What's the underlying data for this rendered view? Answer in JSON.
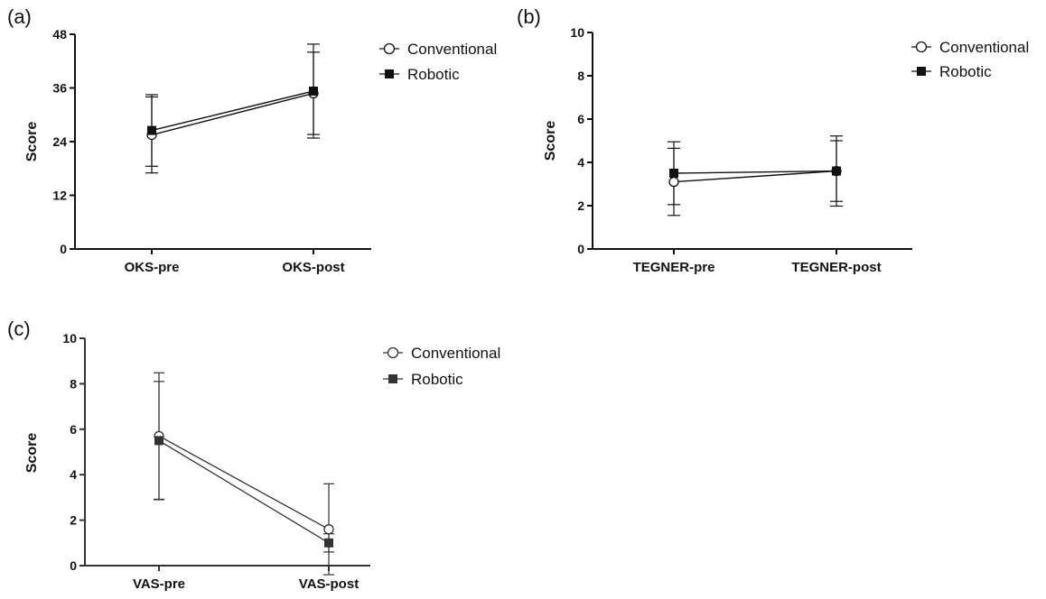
{
  "chart_data": [
    {
      "panel": "(a)",
      "type": "line",
      "categories": [
        "OKS-pre",
        "OKS-post"
      ],
      "ylabel": "Score",
      "ylim": [
        0,
        48
      ],
      "yticks": [
        "0",
        "12",
        "24",
        "36",
        "48"
      ],
      "series": [
        {
          "name": "Conventional",
          "marker": "open-circle",
          "values": [
            25.5,
            34.8
          ],
          "errors": [
            8.5,
            9.2
          ]
        },
        {
          "name": "Robotic",
          "marker": "filled-square",
          "values": [
            26.5,
            35.3
          ],
          "errors": [
            8.0,
            10.5
          ]
        }
      ],
      "legend": "top-right",
      "color": "#111111"
    },
    {
      "panel": "(b)",
      "type": "line",
      "categories": [
        "TEGNER-pre",
        "TEGNER-post"
      ],
      "ylabel": "Score",
      "ylim": [
        0,
        10
      ],
      "yticks": [
        "0",
        "2",
        "4",
        "6",
        "8",
        "10"
      ],
      "series": [
        {
          "name": "Conventional",
          "marker": "open-circle",
          "values": [
            3.1,
            3.6
          ],
          "errors": [
            1.55,
            1.4
          ]
        },
        {
          "name": "Robotic",
          "marker": "filled-square",
          "values": [
            3.5,
            3.6
          ],
          "errors": [
            1.45,
            1.62
          ]
        }
      ],
      "legend": "top-right",
      "color": "#111111"
    },
    {
      "panel": "(c)",
      "type": "line",
      "categories": [
        "VAS-pre",
        "VAS-post"
      ],
      "ylabel": "Score",
      "ylim": [
        0,
        10
      ],
      "yticks": [
        "0",
        "2",
        "4",
        "6",
        "8",
        "10"
      ],
      "series": [
        {
          "name": "Conventional",
          "marker": "open-circle",
          "values": [
            5.7,
            1.6
          ],
          "errors": [
            2.78,
            2.0
          ]
        },
        {
          "name": "Robotic",
          "marker": "filled-square",
          "values": [
            5.5,
            1.0
          ],
          "errors": [
            2.6,
            0.4
          ]
        }
      ],
      "legend": "top-right",
      "color": "#333333"
    }
  ]
}
